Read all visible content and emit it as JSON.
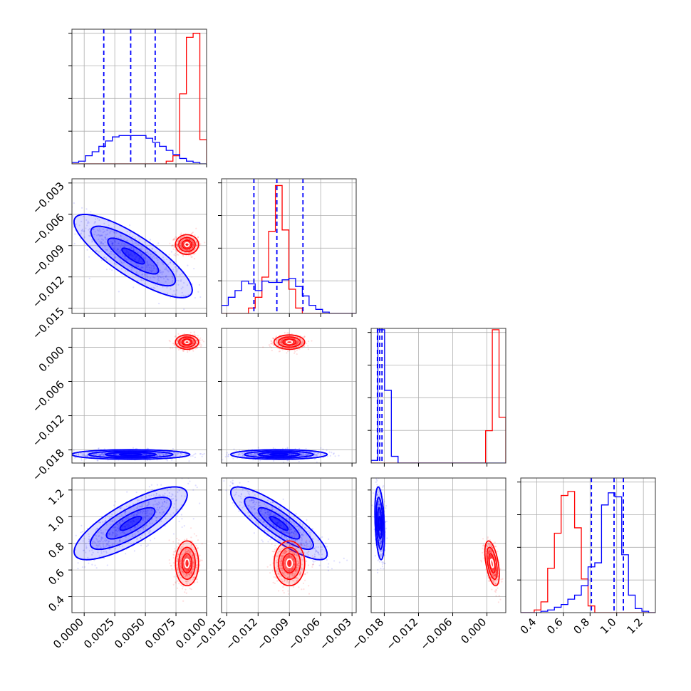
{
  "chart_data": {
    "type": "corner",
    "title": "",
    "grid": true,
    "colors": {
      "blue": "#0000ff",
      "red": "#ff0000"
    },
    "params": [
      {
        "range": [
          -0.001,
          0.01
        ],
        "ticks": [
          "0.0000",
          "0.0025",
          "0.0050",
          "0.0075",
          "0.0100"
        ],
        "tick_values": [
          0.0,
          0.0025,
          0.005,
          0.0075,
          0.01
        ]
      },
      {
        "range": [
          -0.0155,
          -0.0026
        ],
        "ticks": [
          "−0.015",
          "−0.012",
          "−0.009",
          "−0.006",
          "−0.003"
        ],
        "tick_values": [
          -0.015,
          -0.012,
          -0.009,
          -0.006,
          -0.003
        ]
      },
      {
        "range": [
          -0.0203,
          0.0033
        ],
        "ticks": [
          "−0.018",
          "−0.012",
          "−0.006",
          "0.000"
        ],
        "tick_values": [
          -0.018,
          -0.012,
          -0.006,
          0.0
        ]
      },
      {
        "range": [
          0.28,
          1.29
        ],
        "ticks": [
          "0.4",
          "0.6",
          "0.8",
          "1.0",
          "1.2"
        ],
        "tick_values": [
          0.4,
          0.6,
          0.8,
          1.0,
          1.2
        ]
      }
    ],
    "quantiles": [
      [
        0.0016,
        0.0038,
        0.0058
      ],
      [
        -0.0124,
        -0.0102,
        -0.0077
      ],
      [
        -0.0192,
        -0.0188,
        -0.0184
      ],
      [
        0.81,
        0.98,
        1.05
      ]
    ],
    "hist1d": [
      {
        "blue": [
          0.01,
          0.02,
          0.06,
          0.09,
          0.13,
          0.17,
          0.2,
          0.21,
          0.21,
          0.21,
          0.21,
          0.19,
          0.16,
          0.13,
          0.1,
          0.07,
          0.04,
          0.02,
          0.01,
          0.0
        ],
        "red": [
          0,
          0,
          0,
          0,
          0,
          0,
          0,
          0,
          0,
          0,
          0,
          0,
          0,
          0,
          0.02,
          0.06,
          0.52,
          0.94,
          0.97,
          0.18
        ]
      },
      {
        "blue": [
          0.06,
          0.12,
          0.17,
          0.24,
          0.22,
          0.17,
          0.24,
          0.23,
          0.23,
          0.25,
          0.26,
          0.2,
          0.13,
          0.06,
          0.03,
          0.01,
          0.0,
          0.0,
          0.0,
          0.0
        ],
        "red": [
          0,
          0,
          0,
          0,
          0.04,
          0.12,
          0.27,
          0.61,
          0.95,
          0.62,
          0.18,
          0.04,
          0,
          0,
          0,
          0,
          0,
          0,
          0,
          0
        ]
      },
      {
        "blue": [
          0.02,
          0.99,
          0.54,
          0.05,
          0,
          0,
          0,
          0,
          0,
          0,
          0,
          0,
          0,
          0,
          0,
          0,
          0,
          0,
          0,
          0
        ],
        "red": [
          0,
          0,
          0,
          0,
          0,
          0,
          0,
          0,
          0,
          0,
          0,
          0,
          0,
          0,
          0,
          0,
          0,
          0.24,
          0.99,
          0.34
        ]
      },
      {
        "blue": [
          0,
          0,
          0,
          0.01,
          0.02,
          0.04,
          0.06,
          0.1,
          0.13,
          0.2,
          0.34,
          0.37,
          0.8,
          0.89,
          0.86,
          0.43,
          0.13,
          0.03,
          0.01,
          0
        ],
        "red": [
          0,
          0,
          0.02,
          0.08,
          0.33,
          0.59,
          0.87,
          0.9,
          0.63,
          0.25,
          0.05,
          0,
          0,
          0,
          0,
          0,
          0,
          0,
          0,
          0
        ]
      }
    ],
    "clusters": [
      {
        "i": 1,
        "j": 0,
        "color": "blue",
        "cx": 0.004,
        "cy": -0.01,
        "sx": 0.0023,
        "sy": 0.0019,
        "rho": -0.82
      },
      {
        "i": 1,
        "j": 0,
        "color": "red",
        "cx": 0.0084,
        "cy": -0.0089,
        "sx": 0.00045,
        "sy": 0.00045,
        "rho": 0.0
      },
      {
        "i": 2,
        "j": 0,
        "color": "blue",
        "cx": 0.0038,
        "cy": -0.0188,
        "sx": 0.0023,
        "sy": 0.0004,
        "rho": 0.0
      },
      {
        "i": 2,
        "j": 0,
        "color": "red",
        "cx": 0.0084,
        "cy": 0.0009,
        "sx": 0.00045,
        "sy": 0.0006,
        "rho": 0.0
      },
      {
        "i": 2,
        "j": 1,
        "color": "blue",
        "cx": -0.01,
        "cy": -0.0188,
        "sx": 0.0022,
        "sy": 0.0004,
        "rho": 0.0
      },
      {
        "i": 2,
        "j": 1,
        "color": "red",
        "cx": -0.009,
        "cy": 0.0009,
        "sx": 0.0007,
        "sy": 0.0006,
        "rho": 0.0
      },
      {
        "i": 3,
        "j": 0,
        "color": "blue",
        "cx": 0.0038,
        "cy": 0.95,
        "sx": 0.0022,
        "sy": 0.13,
        "rho": 0.78
      },
      {
        "i": 3,
        "j": 0,
        "color": "red",
        "cx": 0.0084,
        "cy": 0.65,
        "sx": 0.00045,
        "sy": 0.08,
        "rho": 0.0
      },
      {
        "i": 3,
        "j": 1,
        "color": "blue",
        "cx": -0.01,
        "cy": 0.95,
        "sx": 0.0022,
        "sy": 0.13,
        "rho": -0.85
      },
      {
        "i": 3,
        "j": 1,
        "color": "red",
        "cx": -0.009,
        "cy": 0.65,
        "sx": 0.0007,
        "sy": 0.08,
        "rho": 0.0
      },
      {
        "i": 3,
        "j": 2,
        "color": "blue",
        "cx": -0.0188,
        "cy": 0.95,
        "sx": 0.0004,
        "sy": 0.13,
        "rho": -0.3
      },
      {
        "i": 3,
        "j": 2,
        "color": "red",
        "cx": 0.0009,
        "cy": 0.65,
        "sx": 0.0006,
        "sy": 0.08,
        "rho": -0.5
      }
    ]
  }
}
